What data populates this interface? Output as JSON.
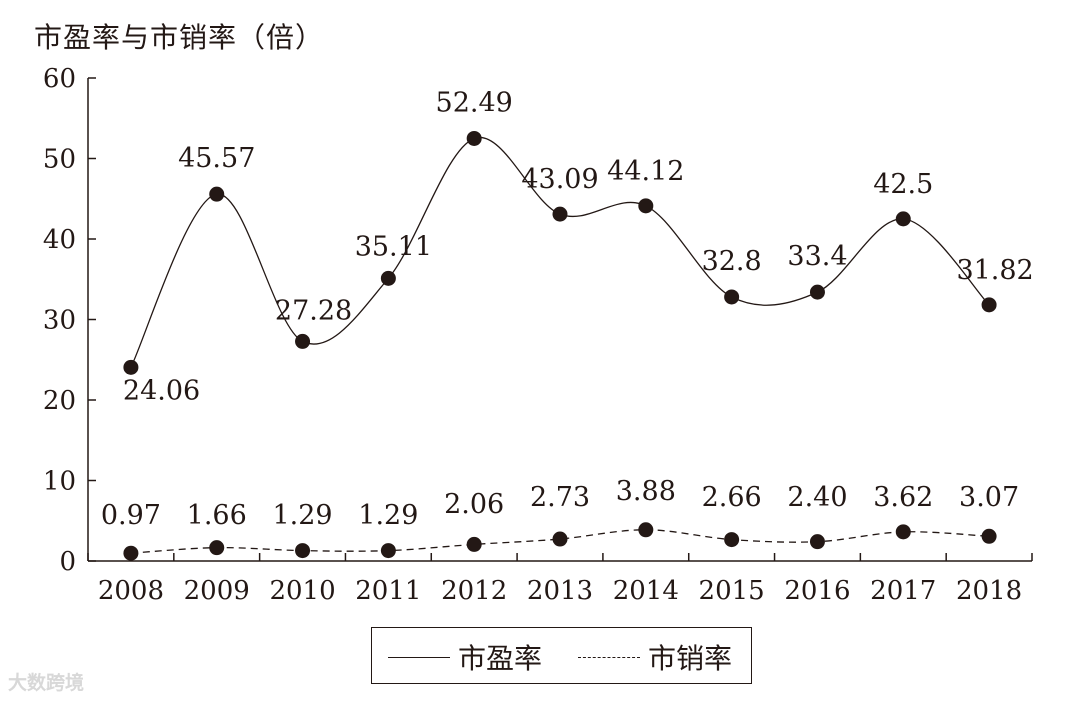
{
  "chart_data": {
    "type": "line",
    "ylabel": "市盈率与市销率（倍）",
    "categories": [
      "2008",
      "2009",
      "2010",
      "2011",
      "2012",
      "2013",
      "2014",
      "2015",
      "2016",
      "2017",
      "2018"
    ],
    "ylim": [
      0,
      60
    ],
    "yticks": [
      0,
      10,
      20,
      30,
      40,
      50,
      60
    ],
    "series": [
      {
        "name": "市盈率",
        "style": "solid",
        "values": [
          24.06,
          45.57,
          27.28,
          35.11,
          52.49,
          43.09,
          44.12,
          32.8,
          33.4,
          42.5,
          31.82
        ],
        "labels": [
          "24.06",
          "45.57",
          "27.28",
          "35.11",
          "52.49",
          "43.09",
          "44.12",
          "32.8",
          "33.4",
          "42.5",
          "31.82"
        ]
      },
      {
        "name": "市销率",
        "style": "dashed",
        "values": [
          0.97,
          1.66,
          1.29,
          1.29,
          2.06,
          2.73,
          3.88,
          2.66,
          2.4,
          3.62,
          3.07
        ],
        "labels": [
          "0.97",
          "1.66",
          "1.29",
          "1.29",
          "2.06",
          "2.73",
          "3.88",
          "2.66",
          "2.40",
          "3.62",
          "3.07"
        ]
      }
    ],
    "grid": false,
    "legend": "bottom-center"
  },
  "legend": {
    "pe": "市盈率",
    "ps": "市销率"
  },
  "watermark": "大数跨境"
}
